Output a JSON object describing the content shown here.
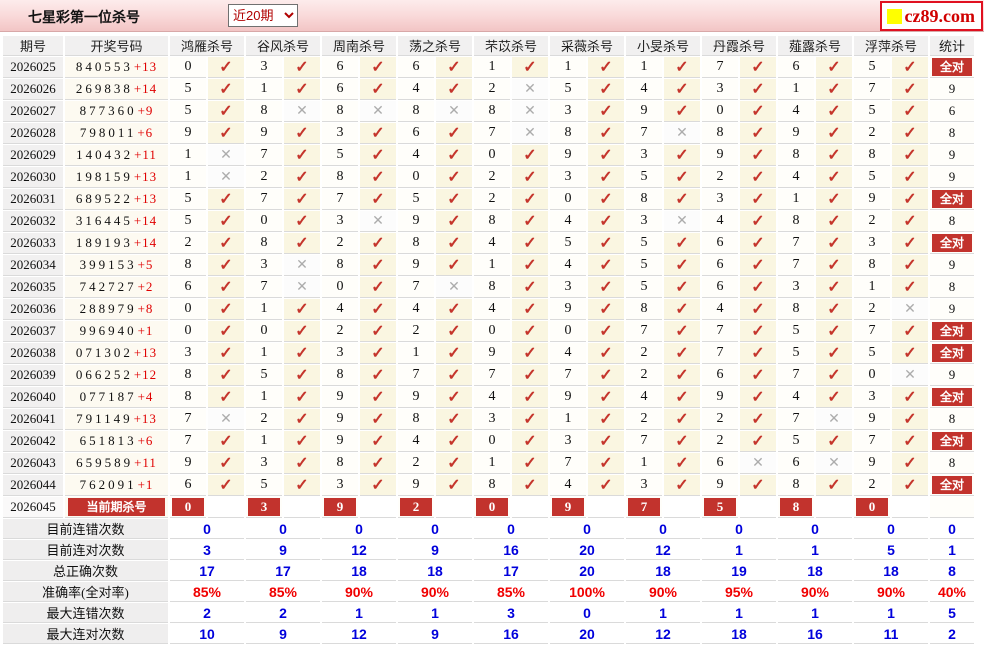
{
  "header": {
    "title": "七星彩第一位杀号",
    "period_select": {
      "value": "近20期",
      "options": [
        "近20期"
      ]
    },
    "logo": {
      "text": "cz89.com",
      "square_color": "#FFFF00",
      "text_color": "#D00000"
    }
  },
  "icons": {
    "check": "✓",
    "cross": "✕"
  },
  "colors": {
    "accent_red": "#C2332D",
    "check_red": "#C5352C",
    "cross_gray": "#ACACAC",
    "bonus_red": "#E00000",
    "summary_blue": "#0000DC",
    "rate_red": "#F00000",
    "bar_pink": "#F8D6D6",
    "mark_bg_cream": "#FAF6E1"
  },
  "table": {
    "col_headers": {
      "period": "期号",
      "draw": "开奖号码",
      "stat": "统计"
    },
    "experts": [
      "鸿雁杀号",
      "谷风杀号",
      "周南杀号",
      "荡之杀号",
      "芣苡杀号",
      "采薇杀号",
      "小旻杀号",
      "丹霞杀号",
      "薤露杀号",
      "浮萍杀号"
    ],
    "all_correct_label": "全对",
    "rows": [
      {
        "period": "2026025",
        "draw": "840553",
        "bonus": "+13",
        "kills": [
          0,
          3,
          6,
          6,
          1,
          1,
          1,
          7,
          6,
          5
        ],
        "marks": [
          1,
          1,
          1,
          1,
          1,
          1,
          1,
          1,
          1,
          1
        ],
        "stat": "全对"
      },
      {
        "period": "2026026",
        "draw": "269838",
        "bonus": "+14",
        "kills": [
          5,
          1,
          6,
          4,
          2,
          5,
          4,
          3,
          1,
          7
        ],
        "marks": [
          1,
          1,
          1,
          1,
          0,
          1,
          1,
          1,
          1,
          1
        ],
        "stat": "9"
      },
      {
        "period": "2026027",
        "draw": "877360",
        "bonus": "+9",
        "kills": [
          5,
          8,
          8,
          8,
          8,
          3,
          9,
          0,
          4,
          5
        ],
        "marks": [
          1,
          0,
          0,
          0,
          0,
          1,
          1,
          1,
          1,
          1
        ],
        "stat": "6"
      },
      {
        "period": "2026028",
        "draw": "798011",
        "bonus": "+6",
        "kills": [
          9,
          9,
          3,
          6,
          7,
          8,
          7,
          8,
          9,
          2
        ],
        "marks": [
          1,
          1,
          1,
          1,
          0,
          1,
          0,
          1,
          1,
          1
        ],
        "stat": "8"
      },
      {
        "period": "2026029",
        "draw": "140432",
        "bonus": "+11",
        "kills": [
          1,
          7,
          5,
          4,
          0,
          9,
          3,
          9,
          8,
          8
        ],
        "marks": [
          0,
          1,
          1,
          1,
          1,
          1,
          1,
          1,
          1,
          1
        ],
        "stat": "9"
      },
      {
        "period": "2026030",
        "draw": "198159",
        "bonus": "+13",
        "kills": [
          1,
          2,
          8,
          0,
          2,
          3,
          5,
          2,
          4,
          5
        ],
        "marks": [
          0,
          1,
          1,
          1,
          1,
          1,
          1,
          1,
          1,
          1
        ],
        "stat": "9"
      },
      {
        "period": "2026031",
        "draw": "689522",
        "bonus": "+13",
        "kills": [
          5,
          7,
          7,
          5,
          2,
          0,
          8,
          3,
          1,
          9
        ],
        "marks": [
          1,
          1,
          1,
          1,
          1,
          1,
          1,
          1,
          1,
          1
        ],
        "stat": "全对"
      },
      {
        "period": "2026032",
        "draw": "316445",
        "bonus": "+14",
        "kills": [
          5,
          0,
          3,
          9,
          8,
          4,
          3,
          4,
          8,
          2
        ],
        "marks": [
          1,
          1,
          0,
          1,
          1,
          1,
          0,
          1,
          1,
          1
        ],
        "stat": "8"
      },
      {
        "period": "2026033",
        "draw": "189193",
        "bonus": "+14",
        "kills": [
          2,
          8,
          2,
          8,
          4,
          5,
          5,
          6,
          7,
          3
        ],
        "marks": [
          1,
          1,
          1,
          1,
          1,
          1,
          1,
          1,
          1,
          1
        ],
        "stat": "全对"
      },
      {
        "period": "2026034",
        "draw": "399153",
        "bonus": "+5",
        "kills": [
          8,
          3,
          8,
          9,
          1,
          4,
          5,
          6,
          7,
          8
        ],
        "marks": [
          1,
          0,
          1,
          1,
          1,
          1,
          1,
          1,
          1,
          1
        ],
        "stat": "9"
      },
      {
        "period": "2026035",
        "draw": "742727",
        "bonus": "+2",
        "kills": [
          6,
          7,
          0,
          7,
          8,
          3,
          5,
          6,
          3,
          1
        ],
        "marks": [
          1,
          0,
          1,
          0,
          1,
          1,
          1,
          1,
          1,
          1
        ],
        "stat": "8"
      },
      {
        "period": "2026036",
        "draw": "288979",
        "bonus": "+8",
        "kills": [
          0,
          1,
          4,
          4,
          4,
          9,
          8,
          4,
          8,
          2
        ],
        "marks": [
          1,
          1,
          1,
          1,
          1,
          1,
          1,
          1,
          1,
          0
        ],
        "stat": "9"
      },
      {
        "period": "2026037",
        "draw": "996940",
        "bonus": "+1",
        "kills": [
          0,
          0,
          2,
          2,
          0,
          0,
          7,
          7,
          5,
          7
        ],
        "marks": [
          1,
          1,
          1,
          1,
          1,
          1,
          1,
          1,
          1,
          1
        ],
        "stat": "全对"
      },
      {
        "period": "2026038",
        "draw": "071302",
        "bonus": "+13",
        "kills": [
          3,
          1,
          3,
          1,
          9,
          4,
          2,
          7,
          5,
          5
        ],
        "marks": [
          1,
          1,
          1,
          1,
          1,
          1,
          1,
          1,
          1,
          1
        ],
        "stat": "全对"
      },
      {
        "period": "2026039",
        "draw": "066252",
        "bonus": "+12",
        "kills": [
          8,
          5,
          8,
          7,
          7,
          7,
          2,
          6,
          7,
          0
        ],
        "marks": [
          1,
          1,
          1,
          1,
          1,
          1,
          1,
          1,
          1,
          0
        ],
        "stat": "9"
      },
      {
        "period": "2026040",
        "draw": "077187",
        "bonus": "+4",
        "kills": [
          8,
          1,
          9,
          9,
          4,
          9,
          4,
          9,
          4,
          3
        ],
        "marks": [
          1,
          1,
          1,
          1,
          1,
          1,
          1,
          1,
          1,
          1
        ],
        "stat": "全对"
      },
      {
        "period": "2026041",
        "draw": "791149",
        "bonus": "+13",
        "kills": [
          7,
          2,
          9,
          8,
          3,
          1,
          2,
          2,
          7,
          9
        ],
        "marks": [
          0,
          1,
          1,
          1,
          1,
          1,
          1,
          1,
          0,
          1
        ],
        "stat": "8"
      },
      {
        "period": "2026042",
        "draw": "651813",
        "bonus": "+6",
        "kills": [
          7,
          1,
          9,
          4,
          0,
          3,
          7,
          2,
          5,
          7
        ],
        "marks": [
          1,
          1,
          1,
          1,
          1,
          1,
          1,
          1,
          1,
          1
        ],
        "stat": "全对"
      },
      {
        "period": "2026043",
        "draw": "659589",
        "bonus": "+11",
        "kills": [
          9,
          3,
          8,
          2,
          1,
          7,
          1,
          6,
          6,
          9
        ],
        "marks": [
          1,
          1,
          1,
          1,
          1,
          1,
          1,
          0,
          0,
          1
        ],
        "stat": "8"
      },
      {
        "period": "2026044",
        "draw": "762091",
        "bonus": "+1",
        "kills": [
          6,
          5,
          3,
          9,
          8,
          4,
          3,
          9,
          8,
          2
        ],
        "marks": [
          1,
          1,
          1,
          1,
          1,
          1,
          1,
          1,
          1,
          1
        ],
        "stat": "全对"
      }
    ],
    "current_row": {
      "period": "2026045",
      "label": "当前期杀号",
      "kills": [
        0,
        3,
        9,
        2,
        0,
        9,
        7,
        5,
        8,
        0
      ],
      "stat": ""
    },
    "summary_rows": [
      {
        "label": "目前连错次数",
        "style": "blue",
        "values": [
          "0",
          "0",
          "0",
          "0",
          "0",
          "0",
          "0",
          "0",
          "0",
          "0"
        ],
        "stat": "0"
      },
      {
        "label": "目前连对次数",
        "style": "blue",
        "values": [
          "3",
          "9",
          "12",
          "9",
          "16",
          "20",
          "12",
          "1",
          "1",
          "5"
        ],
        "stat": "1"
      },
      {
        "label": "总正确次数",
        "style": "blue",
        "values": [
          "17",
          "17",
          "18",
          "18",
          "17",
          "20",
          "18",
          "19",
          "18",
          "18"
        ],
        "stat": "8"
      },
      {
        "label": "准确率(全对率)",
        "style": "red",
        "values": [
          "85%",
          "85%",
          "90%",
          "90%",
          "85%",
          "100%",
          "90%",
          "95%",
          "90%",
          "90%"
        ],
        "stat": "40%"
      },
      {
        "label": "最大连错次数",
        "style": "blue",
        "values": [
          "2",
          "2",
          "1",
          "1",
          "3",
          "0",
          "1",
          "1",
          "1",
          "1"
        ],
        "stat": "5"
      },
      {
        "label": "最大连对次数",
        "style": "blue",
        "values": [
          "10",
          "9",
          "12",
          "9",
          "16",
          "20",
          "12",
          "18",
          "16",
          "11"
        ],
        "stat": "2"
      }
    ]
  }
}
